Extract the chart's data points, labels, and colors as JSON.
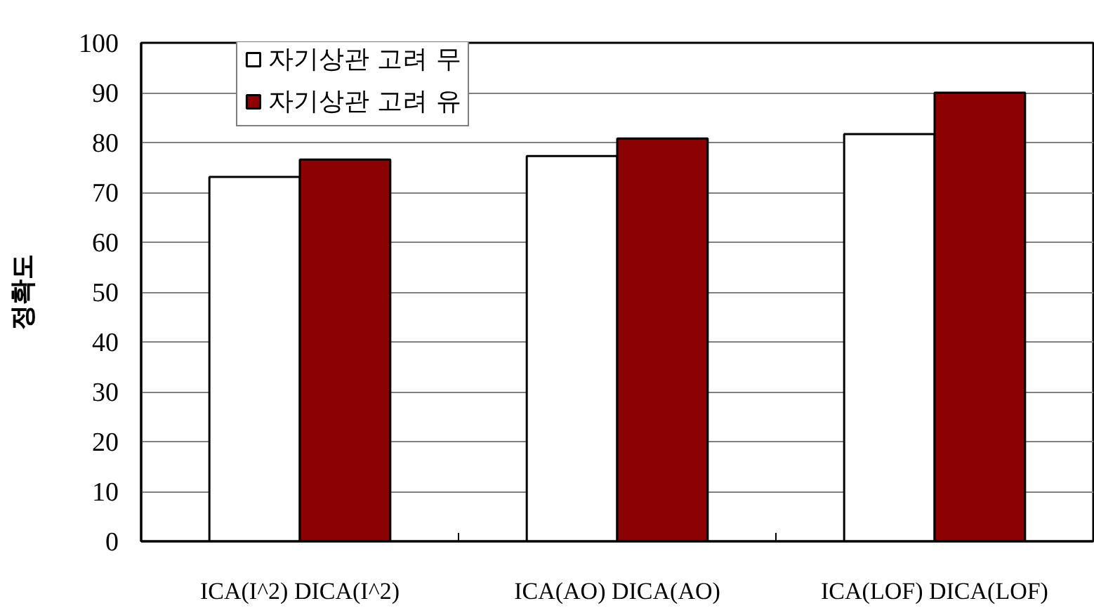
{
  "chart_data": {
    "type": "bar",
    "ylabel": "정확도",
    "categories": [
      "ICA(I^2) DICA(I^2)",
      "ICA(AO) DICA(AO)",
      "ICA(LOF) DICA(LOF)"
    ],
    "series": [
      {
        "name": "자기상관 고려 무",
        "color": "#ffffff",
        "values": [
          73.1,
          77.3,
          81.7
        ]
      },
      {
        "name": "자기상관 고려 유",
        "color": "#8b0000",
        "values": [
          76.6,
          80.8,
          90.0
        ]
      }
    ],
    "ylim": [
      0,
      100
    ],
    "yticks": [
      0,
      10,
      20,
      30,
      40,
      50,
      60,
      70,
      80,
      90,
      100
    ],
    "grid": "y",
    "legend": "top left"
  }
}
